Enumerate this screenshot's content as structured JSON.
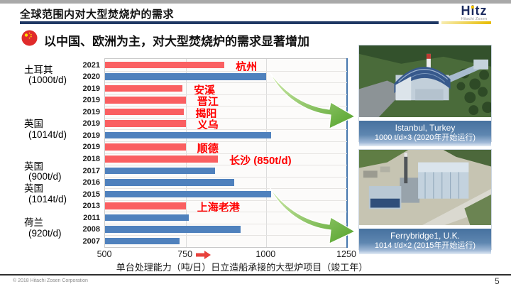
{
  "header": {
    "title": "全球范围内对大型焚烧炉的需求",
    "logo_text": "Hitz",
    "logo_subtext": "Hitachi Zosen"
  },
  "heading": {
    "text": "以中国、欧洲为主，对大型焚烧炉的需求显著增加"
  },
  "chart_data": {
    "type": "bar",
    "orientation": "horizontal",
    "xlabel": "单台处理能力（吨/日）日立造船承接的大型炉项目（竣工年）",
    "xlim": [
      500,
      1250
    ],
    "xticks": [
      500,
      750,
      1000,
      1250
    ],
    "grid": true,
    "bars": [
      {
        "year": "2021",
        "value": 870,
        "group": "china",
        "label": "杭州"
      },
      {
        "year": "2020",
        "value": 1000,
        "group": "overseas",
        "label": ""
      },
      {
        "year": "2019",
        "value": 740,
        "group": "china",
        "label": "安溪"
      },
      {
        "year": "2019",
        "value": 750,
        "group": "china",
        "label": "晋江"
      },
      {
        "year": "2019",
        "value": 745,
        "group": "china",
        "label": "揭阳"
      },
      {
        "year": "2019",
        "value": 750,
        "group": "china",
        "label": "义乌"
      },
      {
        "year": "2019",
        "value": 1014,
        "group": "overseas",
        "label": ""
      },
      {
        "year": "2019",
        "value": 750,
        "group": "china",
        "label": "顺德"
      },
      {
        "year": "2018",
        "value": 850,
        "group": "china",
        "label": "长沙 (850t/d)"
      },
      {
        "year": "2017",
        "value": 840,
        "group": "overseas",
        "label": ""
      },
      {
        "year": "2016",
        "value": 900,
        "group": "overseas",
        "label": ""
      },
      {
        "year": "2015",
        "value": 1014,
        "group": "overseas",
        "label": ""
      },
      {
        "year": "2013",
        "value": 750,
        "group": "china",
        "label": "上海老港"
      },
      {
        "year": "2011",
        "value": 760,
        "group": "overseas",
        "label": ""
      },
      {
        "year": "2008",
        "value": 920,
        "group": "overseas",
        "label": ""
      },
      {
        "year": "2007",
        "value": 730,
        "group": "overseas",
        "label": ""
      }
    ],
    "group_labels": [
      {
        "region": "土耳其",
        "capacity": "(1000t/d)",
        "row": 1.5
      },
      {
        "region": "英国",
        "capacity": "(1014t/d)",
        "row": 6.1
      },
      {
        "region": "英国",
        "capacity": "(900t/d)",
        "row": 9.7
      },
      {
        "region": "英国",
        "capacity": "(1014t/d)",
        "row": 11.6
      },
      {
        "region": "荷兰",
        "capacity": "(920t/d)",
        "row": 14.5
      }
    ],
    "colors": {
      "china_bar": "#fa5f61",
      "overseas_bar": "#4f81bd",
      "bar_label_red": "#ff0000",
      "arrow_green": "#6ebe45",
      "caption_blue": "#46719f",
      "rule_navy": "#1f3864",
      "rule_gold": "#e7bc00"
    }
  },
  "photos": [
    {
      "caption_line1": "Istanbul, Turkey",
      "caption_line2": "1000 t/d×3 (2020年开始运行)"
    },
    {
      "caption_line1": "Ferrybridge1, U.K.",
      "caption_line2": "1014 t/d×2 (2015年开始运行)"
    }
  ],
  "footer": {
    "copyright": "© 2018 Hitachi Zosen Corporation",
    "page": "5"
  }
}
